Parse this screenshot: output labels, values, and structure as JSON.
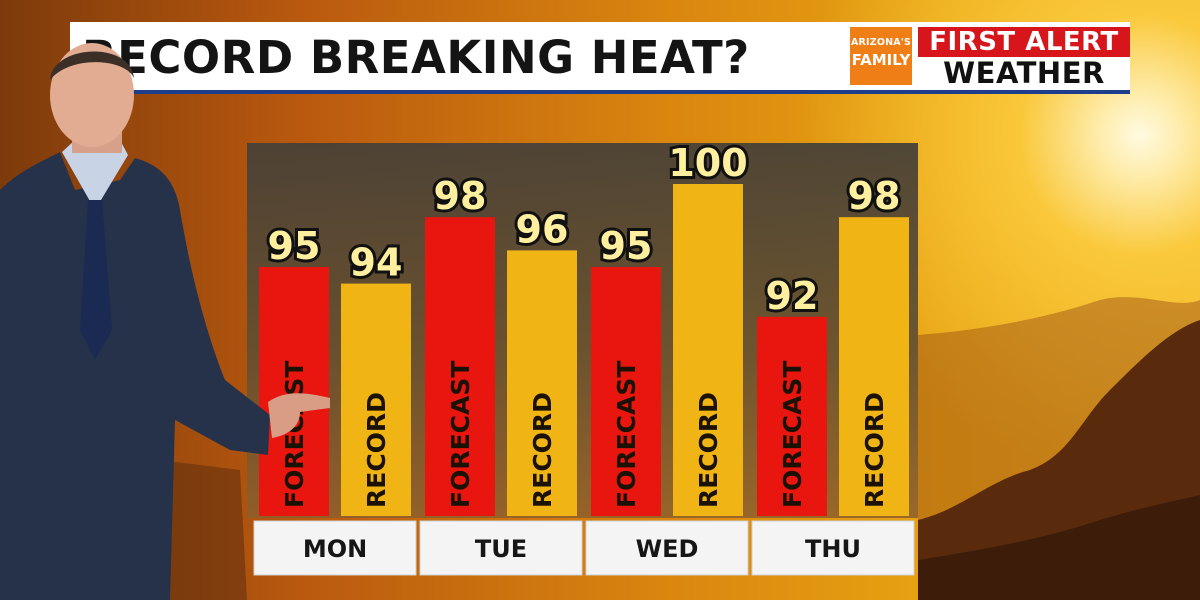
{
  "header": {
    "title": "RECORD BREAKING HEAT?",
    "brand_line1": "ARIZONA'S",
    "brand_line2": "FAMILY",
    "alert_line1": "FIRST ALERT",
    "alert_line2": "WEATHER"
  },
  "colors": {
    "forecast": "#e8160e",
    "record": "#f0b514",
    "title_underline": "#1c3e8c",
    "brand_orange": "#f07e16",
    "alert_red": "#d7161c"
  },
  "chart_data": {
    "type": "bar",
    "categories": [
      "MON",
      "TUE",
      "WED",
      "THU"
    ],
    "series": [
      {
        "name": "FORECAST",
        "values": [
          95,
          98,
          95,
          92
        ]
      },
      {
        "name": "RECORD",
        "values": [
          94,
          96,
          100,
          98
        ]
      }
    ],
    "ylim": [
      80,
      101
    ],
    "bar_labels": [
      "FORECAST",
      "RECORD"
    ]
  }
}
